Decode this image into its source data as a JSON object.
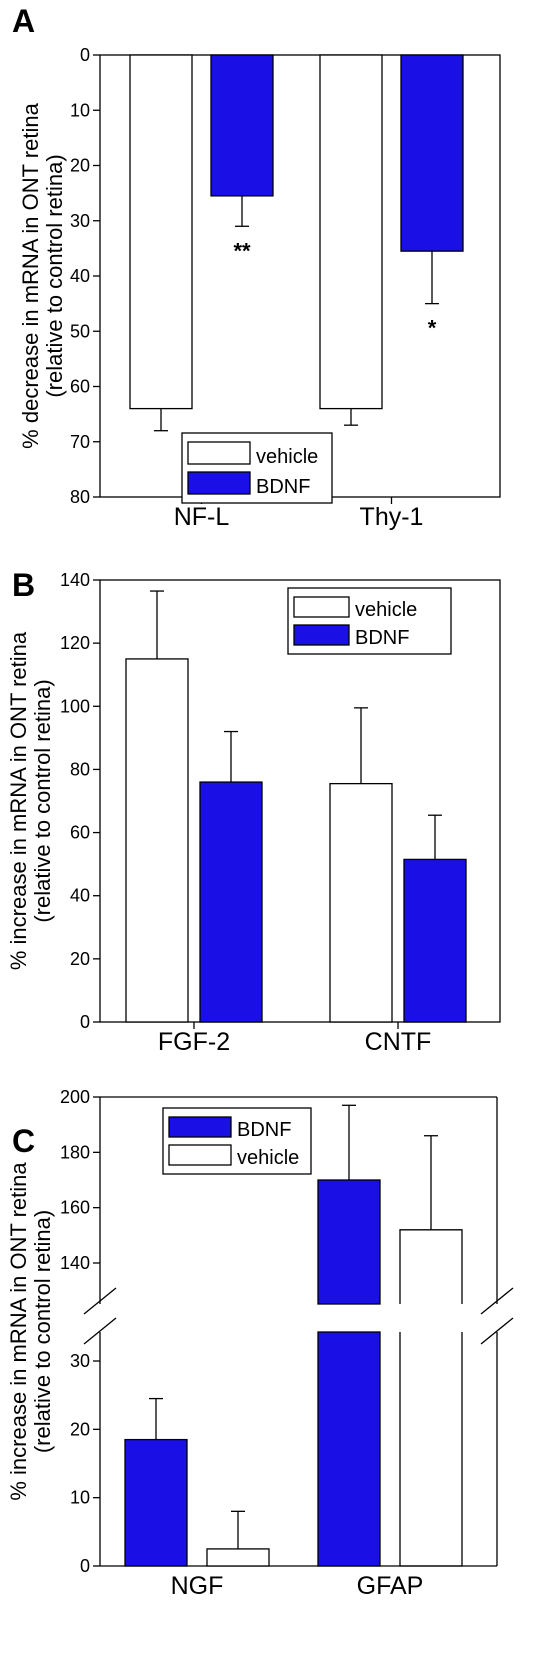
{
  "colors": {
    "vehicle": "#ffffff",
    "bdnf": "#1a10e6",
    "stroke": "#000000"
  },
  "chart_data": [
    {
      "panel": "A",
      "type": "bar",
      "orientation": "hanging",
      "ylabel_lines": [
        "% decrease in mRNA in ONT retina",
        "(relative to control retina)"
      ],
      "ylim": [
        0,
        80
      ],
      "yticks": [
        0,
        10,
        20,
        30,
        40,
        50,
        60,
        70,
        80
      ],
      "categories": [
        "NF-L",
        "Thy-1"
      ],
      "legend": {
        "position": "bottom-center",
        "entries": [
          "vehicle",
          "BDNF"
        ]
      },
      "series": [
        {
          "name": "vehicle",
          "values": [
            64,
            64
          ],
          "errors": [
            4,
            3
          ],
          "significance": [
            "",
            ""
          ]
        },
        {
          "name": "BDNF",
          "values": [
            25.5,
            35.5
          ],
          "errors": [
            5.5,
            9.5
          ],
          "significance": [
            "**",
            "*"
          ]
        }
      ]
    },
    {
      "panel": "B",
      "type": "bar",
      "ylabel_lines": [
        "% increase in mRNA in ONT retina",
        "(relative to control retina)"
      ],
      "ylim": [
        0,
        140
      ],
      "yticks": [
        0,
        20,
        40,
        60,
        80,
        100,
        120,
        140
      ],
      "categories": [
        "FGF-2",
        "CNTF"
      ],
      "legend": {
        "position": "top-right",
        "entries": [
          "vehicle",
          "BDNF"
        ]
      },
      "series": [
        {
          "name": "vehicle",
          "values": [
            115,
            75.5
          ],
          "errors": [
            21.5,
            24
          ]
        },
        {
          "name": "BDNF",
          "values": [
            76,
            51.5
          ],
          "errors": [
            16,
            14
          ]
        }
      ]
    },
    {
      "panel": "C",
      "type": "bar",
      "broken_axis": true,
      "ylabel_lines": [
        "% increase in mRNA in ONT retina",
        "(relative to control retina)"
      ],
      "yticks_lower": [
        0,
        10,
        20,
        30
      ],
      "yticks_upper": [
        140,
        160,
        180,
        200
      ],
      "categories": [
        "NGF",
        "GFAP"
      ],
      "legend": {
        "position": "top-left",
        "entries": [
          "BDNF",
          "vehicle"
        ]
      },
      "series": [
        {
          "name": "BDNF",
          "values": [
            18.5,
            170
          ],
          "errors": [
            6,
            27
          ]
        },
        {
          "name": "vehicle",
          "values": [
            2.5,
            152
          ],
          "errors": [
            5.5,
            34
          ]
        }
      ]
    }
  ]
}
